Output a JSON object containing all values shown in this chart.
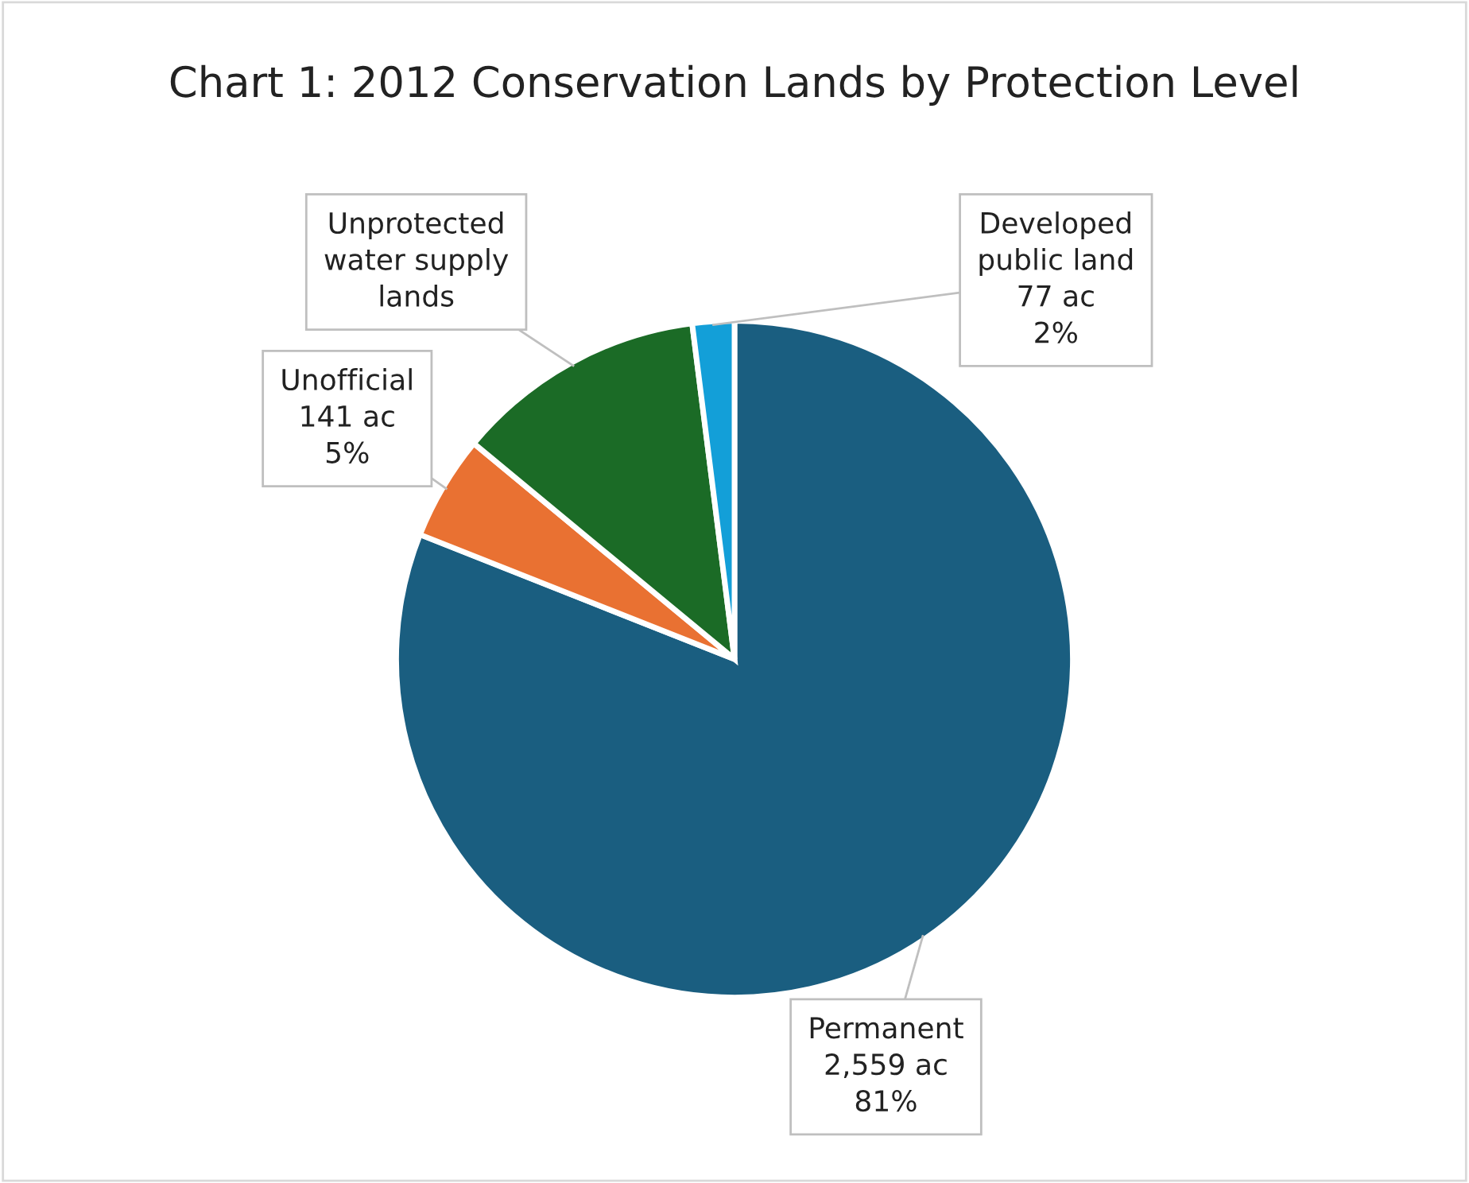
{
  "chart_data": {
    "type": "pie",
    "title": "Chart 1: 2012 Conservation Lands by Protection Level",
    "categories": [
      "Permanent",
      "Unofficial",
      "Unprotected water supply lands",
      "Developed public land"
    ],
    "values": [
      81,
      5,
      12,
      2
    ],
    "value_labels": [
      "2,559 ac\n81%",
      "141 ac\n5%",
      null,
      "77 ac\n2%"
    ],
    "colors": [
      "#1a5e80",
      "#e97132",
      "#1b6b26",
      "#139fd8"
    ],
    "legend": false
  }
}
